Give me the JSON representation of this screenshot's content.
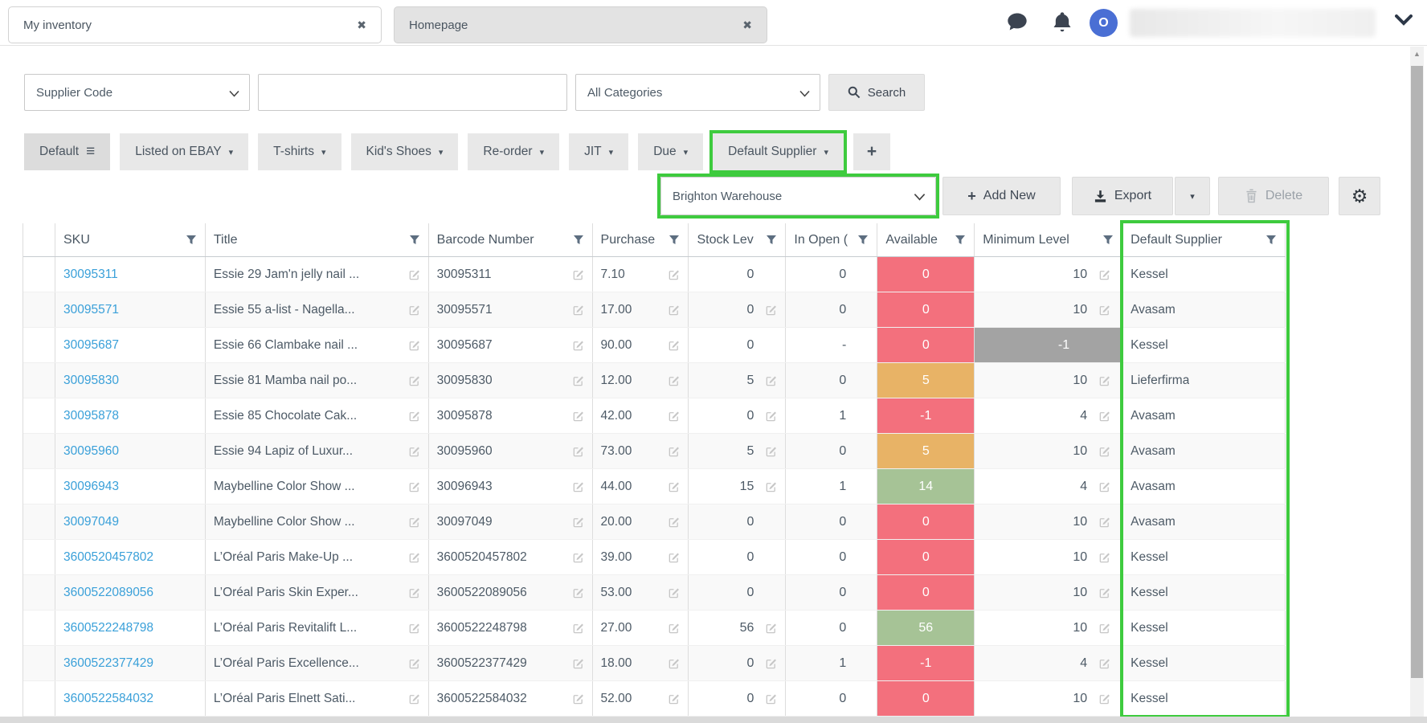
{
  "tabs": [
    {
      "label": "My inventory",
      "active": true,
      "close_label": "✖"
    },
    {
      "label": "Homepage",
      "active": false,
      "close_label": "✖"
    }
  ],
  "topbar": {
    "avatar_initial": "O"
  },
  "icons": {
    "caret": "▾",
    "menu": "≡",
    "plus": "+",
    "gear": "⚙",
    "scroll_up": "▲"
  },
  "search": {
    "field_selector_value": "Supplier Code",
    "query_value": "",
    "query_placeholder": "",
    "category_selector_value": "All Categories",
    "button_label": "Search"
  },
  "views": {
    "items": [
      {
        "label": "Default"
      },
      {
        "label": "Listed on EBAY"
      },
      {
        "label": "T-shirts"
      },
      {
        "label": "Kid's Shoes"
      },
      {
        "label": "Re-order"
      },
      {
        "label": "JIT"
      },
      {
        "label": "Due"
      },
      {
        "label": "Default Supplier"
      }
    ],
    "add_label": "+"
  },
  "toolbar": {
    "warehouse_value": "Brighton Warehouse",
    "add_new_label": "Add New",
    "export_label": "Export",
    "delete_label": "Delete"
  },
  "table": {
    "columns": [
      {
        "label": ""
      },
      {
        "label": "SKU"
      },
      {
        "label": "Title"
      },
      {
        "label": "Barcode Number"
      },
      {
        "label": "Purchase"
      },
      {
        "label": "Stock Lev"
      },
      {
        "label": "In Open ("
      },
      {
        "label": "Available"
      },
      {
        "label": "Minimum Level"
      },
      {
        "label": "Default Supplier"
      }
    ],
    "rows": [
      {
        "sku": "30095311",
        "title": "Essie 29 Jam'n jelly nail ...",
        "barcode": "30095311",
        "purchase": "7.10",
        "stock": "0",
        "stock_edit": false,
        "open": "0",
        "available": "0",
        "available_color": "red",
        "min": "10",
        "min_gray": false,
        "min_edit": true,
        "supplier": "Kessel"
      },
      {
        "sku": "30095571",
        "title": "Essie 55 a-list - Nagella...",
        "barcode": "30095571",
        "purchase": "17.00",
        "stock": "0",
        "stock_edit": true,
        "open": "0",
        "available": "0",
        "available_color": "red",
        "min": "10",
        "min_gray": false,
        "min_edit": true,
        "supplier": "Avasam"
      },
      {
        "sku": "30095687",
        "title": "Essie 66 Clambake nail ...",
        "barcode": "30095687",
        "purchase": "90.00",
        "stock": "0",
        "stock_edit": false,
        "open": "-",
        "available": "0",
        "available_color": "red",
        "min": "-1",
        "min_gray": true,
        "min_edit": false,
        "supplier": "Kessel"
      },
      {
        "sku": "30095830",
        "title": "Essie 81 Mamba nail po...",
        "barcode": "30095830",
        "purchase": "12.00",
        "stock": "5",
        "stock_edit": true,
        "open": "0",
        "available": "5",
        "available_color": "orange",
        "min": "10",
        "min_gray": false,
        "min_edit": true,
        "supplier": "Lieferfirma"
      },
      {
        "sku": "30095878",
        "title": "Essie 85 Chocolate Cak...",
        "barcode": "30095878",
        "purchase": "42.00",
        "stock": "0",
        "stock_edit": true,
        "open": "1",
        "available": "-1",
        "available_color": "red",
        "min": "4",
        "min_gray": false,
        "min_edit": true,
        "supplier": "Avasam"
      },
      {
        "sku": "30095960",
        "title": "Essie 94 Lapiz of Luxur...",
        "barcode": "30095960",
        "purchase": "73.00",
        "stock": "5",
        "stock_edit": true,
        "open": "0",
        "available": "5",
        "available_color": "orange",
        "min": "10",
        "min_gray": false,
        "min_edit": true,
        "supplier": "Avasam"
      },
      {
        "sku": "30096943",
        "title": "Maybelline Color Show ...",
        "barcode": "30096943",
        "purchase": "44.00",
        "stock": "15",
        "stock_edit": true,
        "open": "1",
        "available": "14",
        "available_color": "green",
        "min": "4",
        "min_gray": false,
        "min_edit": true,
        "supplier": "Avasam"
      },
      {
        "sku": "30097049",
        "title": "Maybelline Color Show ...",
        "barcode": "30097049",
        "purchase": "20.00",
        "stock": "0",
        "stock_edit": false,
        "open": "0",
        "available": "0",
        "available_color": "red",
        "min": "10",
        "min_gray": false,
        "min_edit": true,
        "supplier": "Avasam"
      },
      {
        "sku": "3600520457802",
        "title": "L’Oréal Paris Make-Up ...",
        "barcode": "3600520457802",
        "purchase": "39.00",
        "stock": "0",
        "stock_edit": false,
        "open": "0",
        "available": "0",
        "available_color": "red",
        "min": "10",
        "min_gray": false,
        "min_edit": true,
        "supplier": "Kessel"
      },
      {
        "sku": "3600522089056",
        "title": "L’Oréal Paris Skin Exper...",
        "barcode": "3600522089056",
        "purchase": "53.00",
        "stock": "0",
        "stock_edit": false,
        "open": "0",
        "available": "0",
        "available_color": "red",
        "min": "10",
        "min_gray": false,
        "min_edit": true,
        "supplier": "Kessel"
      },
      {
        "sku": "3600522248798",
        "title": "L’Oréal Paris Revitalift L...",
        "barcode": "3600522248798",
        "purchase": "27.00",
        "stock": "56",
        "stock_edit": true,
        "open": "0",
        "available": "56",
        "available_color": "green",
        "min": "10",
        "min_gray": false,
        "min_edit": true,
        "supplier": "Kessel"
      },
      {
        "sku": "3600522377429",
        "title": "L’Oréal Paris Excellence...",
        "barcode": "3600522377429",
        "purchase": "18.00",
        "stock": "0",
        "stock_edit": true,
        "open": "1",
        "available": "-1",
        "available_color": "red",
        "min": "4",
        "min_gray": false,
        "min_edit": true,
        "supplier": "Kessel"
      },
      {
        "sku": "3600522584032",
        "title": "L’Oréal Paris Elnett Sati...",
        "barcode": "3600522584032",
        "purchase": "52.00",
        "stock": "0",
        "stock_edit": true,
        "open": "0",
        "available": "0",
        "available_color": "red",
        "min": "10",
        "min_gray": false,
        "min_edit": true,
        "supplier": "Kessel"
      }
    ]
  },
  "colors": {
    "annotation_green": "#3ecb3e",
    "available_red": "#f3707d",
    "available_orange": "#e8b366",
    "available_green": "#a6c396",
    "minimum_gray": "#a3a3a3",
    "link_blue": "#3aa0d9",
    "avatar_blue": "#4a6fd4"
  }
}
